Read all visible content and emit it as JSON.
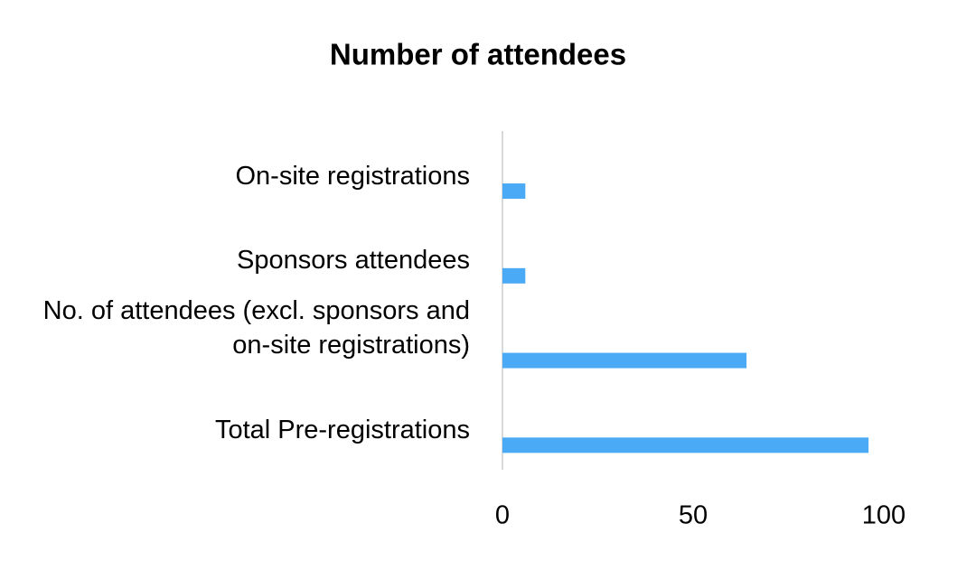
{
  "chart_data": {
    "type": "bar",
    "orientation": "horizontal",
    "title": "Number of attendees",
    "categories": [
      "On-site registrations",
      "Sponsors attendees",
      "No. of attendees (excl. sponsors and on-site registrations)",
      "Total Pre-registrations"
    ],
    "values": [
      6,
      6,
      64,
      96
    ],
    "color": "#4baaf5",
    "xlim": [
      0,
      100
    ],
    "xticks": [
      0,
      50,
      100
    ],
    "grid": false
  }
}
